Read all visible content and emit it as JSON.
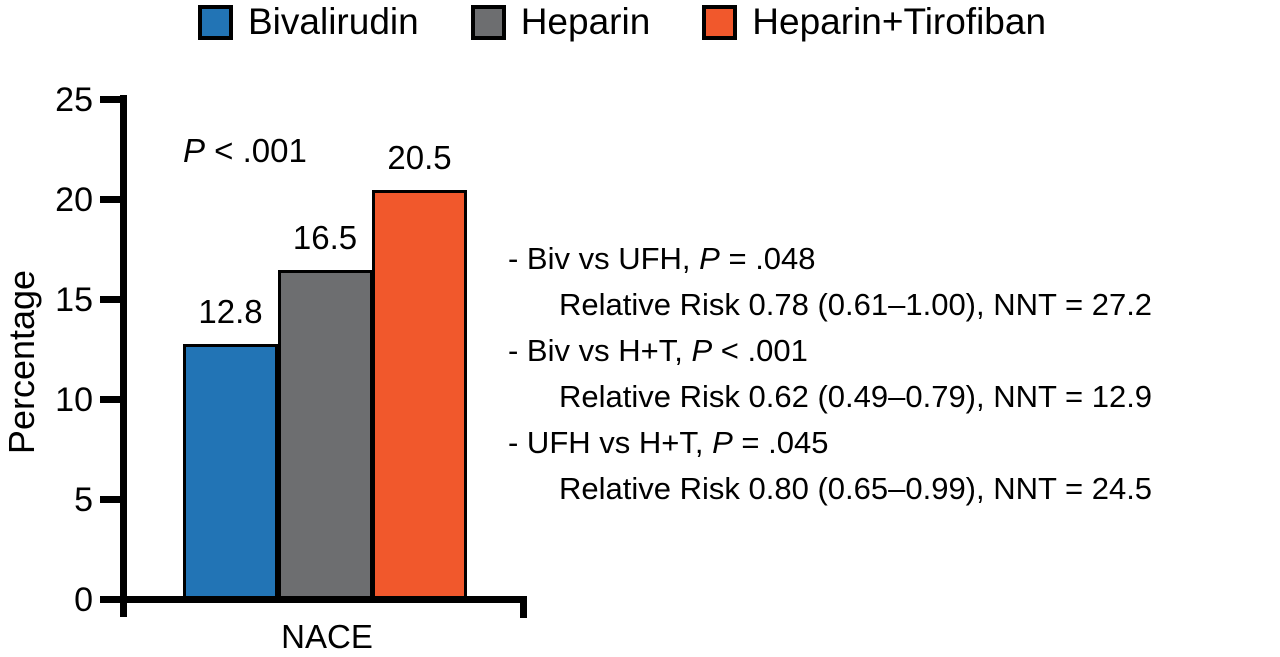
{
  "legend": {
    "items": [
      {
        "label": "Bivalirudin",
        "color": "#2274b5"
      },
      {
        "label": "Heparin",
        "color": "#6d6e70"
      },
      {
        "label": "Heparin+Tirofiban",
        "color": "#f1582c"
      }
    ]
  },
  "chart_data": {
    "type": "bar",
    "categories": [
      "NACE"
    ],
    "series": [
      {
        "name": "Bivalirudin",
        "values": [
          12.8
        ],
        "color": "#2274b5"
      },
      {
        "name": "Heparin",
        "values": [
          16.5
        ],
        "color": "#6d6e70"
      },
      {
        "name": "Heparin+Tirofiban",
        "values": [
          20.5
        ],
        "color": "#f1582c"
      }
    ],
    "bar_labels": [
      "12.8",
      "16.5",
      "20.5"
    ],
    "title": "",
    "xlabel": "NACE",
    "ylabel": "Percentage",
    "ylim": [
      0,
      25
    ],
    "yticks": [
      0,
      5,
      10,
      15,
      20,
      25
    ],
    "grid": "off",
    "legend_position": "top",
    "annotation": {
      "p_symbol": "P",
      "p_rest": " < .001"
    }
  },
  "stats": {
    "items": [
      {
        "pre": "- Biv vs UFH, ",
        "p": "P",
        "post": " = .048",
        "detail": "Relative Risk 0.78 (0.61–1.00), NNT = 27.2"
      },
      {
        "pre": "- Biv vs H+T, ",
        "p": "P",
        "post": " < .001",
        "detail": "Relative Risk 0.62 (0.49–0.79), NNT = 12.9"
      },
      {
        "pre": "- UFH vs H+T, ",
        "p": "P",
        "post": " = .045",
        "detail": "Relative Risk 0.80 (0.65–0.99), NNT = 24.5"
      }
    ]
  }
}
